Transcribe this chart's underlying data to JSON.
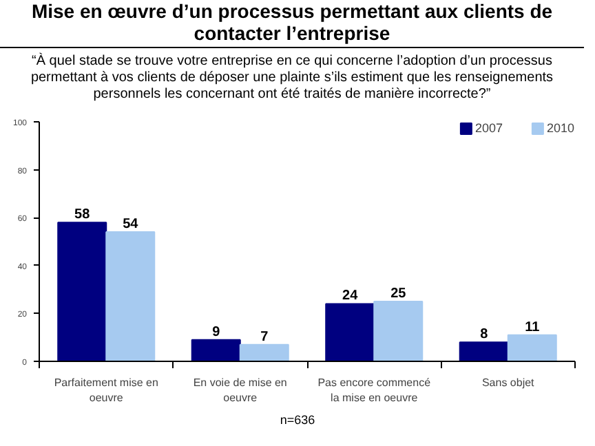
{
  "chart_data": {
    "type": "bar",
    "title": "Mise en œuvre d’un processus permettant aux clients de contacter l’entreprise",
    "subtitle": "“À quel stade se trouve votre entreprise en ce qui concerne l’adoption d’un processus permettant à vos clients de déposer une plainte s’ils estiment que les renseignements personnels les concernant ont été traités de manière incorrecte?”",
    "categories": [
      "Parfaitement mise en oeuvre",
      "En voie de mise en oeuvre",
      "Pas encore commencé la mise en oeuvre",
      "Sans objet"
    ],
    "series": [
      {
        "name": "2007",
        "color": "#000080",
        "values": [
          58,
          9,
          24,
          8
        ]
      },
      {
        "name": "2010",
        "color": "#a6caf0",
        "values": [
          54,
          7,
          25,
          11
        ]
      }
    ],
    "ylim": [
      0,
      100
    ],
    "yticks": [
      0,
      20,
      40,
      60,
      80,
      100
    ],
    "grid": false,
    "legend": "top right",
    "data_labels": true,
    "annotations": [
      "n=636"
    ]
  }
}
